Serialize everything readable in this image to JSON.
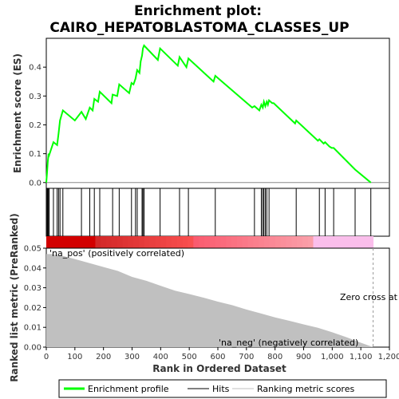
{
  "title_line1": "Enrichment plot:",
  "title_line2": "CAIRO_HEPATOBLASTOMA_CLASSES_UP",
  "top_panel": {
    "ylabel": "Enrichment score (ES)",
    "yticks": [
      "0.0",
      "0.1",
      "0.2",
      "0.3",
      "0.4"
    ]
  },
  "bottom_panel": {
    "ylabel": "Ranked list metric (PreRanked)",
    "xlabel": "Rank in Ordered Dataset",
    "yticks": [
      "0.00",
      "0.01",
      "0.02",
      "0.03",
      "0.04",
      "0.05"
    ],
    "xticks": [
      "0",
      "100",
      "200",
      "300",
      "400",
      "500",
      "600",
      "700",
      "800",
      "900",
      "1,000",
      "1,100",
      "1,200"
    ],
    "pos_label": "'na_pos' (positively correlated)",
    "neg_label": "'na_neg' (negatively correlated)",
    "zero_cross_label": "Zero cross at"
  },
  "legend": {
    "items": [
      "Enrichment profile",
      "Hits",
      "Ranking metric scores"
    ]
  },
  "colors": {
    "es_line": "#00ff00",
    "hits": "#000000",
    "metric_fill": "#c0c0c0",
    "pos_text": "#cc0000",
    "neg_text": "#0000cc"
  },
  "chart_data": {
    "type": "line",
    "x_range": [
      0,
      1200
    ],
    "n_genes": 1143,
    "es_ylim": [
      -0.02,
      0.5
    ],
    "metric_ylim": [
      0,
      0.05
    ],
    "zero_cross_rank": 1143,
    "enrichment_profile": {
      "x": [
        0,
        3,
        5,
        8,
        10,
        25,
        38,
        43,
        48,
        58,
        100,
        123,
        138,
        152,
        162,
        168,
        181,
        187,
        228,
        232,
        248,
        255,
        290,
        298,
        305,
        312,
        318,
        326,
        330,
        335,
        338,
        342,
        390,
        398,
        460,
        466,
        490,
        497,
        585,
        591,
        720,
        728,
        745,
        752,
        757,
        761,
        766,
        771,
        775,
        779,
        790,
        795,
        870,
        874,
        950,
        955,
        970,
        975,
        990,
        998,
        1005,
        1080,
        1135
      ],
      "y": [
        0.0,
        0.04,
        0.07,
        0.1,
        0.095,
        0.14,
        0.13,
        0.17,
        0.215,
        0.25,
        0.215,
        0.245,
        0.22,
        0.26,
        0.25,
        0.29,
        0.28,
        0.315,
        0.275,
        0.305,
        0.3,
        0.34,
        0.31,
        0.345,
        0.34,
        0.36,
        0.39,
        0.38,
        0.42,
        0.44,
        0.465,
        0.475,
        0.425,
        0.465,
        0.405,
        0.435,
        0.4,
        0.43,
        0.35,
        0.37,
        0.26,
        0.265,
        0.25,
        0.27,
        0.26,
        0.28,
        0.265,
        0.28,
        0.27,
        0.285,
        0.275,
        0.275,
        0.205,
        0.215,
        0.145,
        0.15,
        0.135,
        0.14,
        0.125,
        0.12,
        0.12,
        0.045,
        0.0
      ]
    },
    "hits": [
      3,
      5,
      8,
      10,
      25,
      38,
      43,
      48,
      58,
      123,
      152,
      168,
      187,
      232,
      255,
      298,
      312,
      318,
      335,
      338,
      342,
      398,
      466,
      497,
      591,
      728,
      752,
      757,
      761,
      766,
      771,
      779,
      874,
      955,
      975,
      1005,
      1080,
      1135
    ],
    "metric_profile": {
      "x": [
        0,
        20,
        60,
        100,
        150,
        200,
        250,
        300,
        350,
        400,
        450,
        500,
        550,
        600,
        650,
        700,
        750,
        800,
        850,
        900,
        950,
        1000,
        1050,
        1100,
        1143
      ],
      "y": [
        0.047,
        0.047,
        0.046,
        0.0445,
        0.0425,
        0.0405,
        0.0385,
        0.0355,
        0.0335,
        0.031,
        0.0285,
        0.0268,
        0.025,
        0.023,
        0.0212,
        0.019,
        0.017,
        0.015,
        0.0133,
        0.0115,
        0.0098,
        0.0075,
        0.005,
        0.0022,
        0.0
      ]
    }
  }
}
